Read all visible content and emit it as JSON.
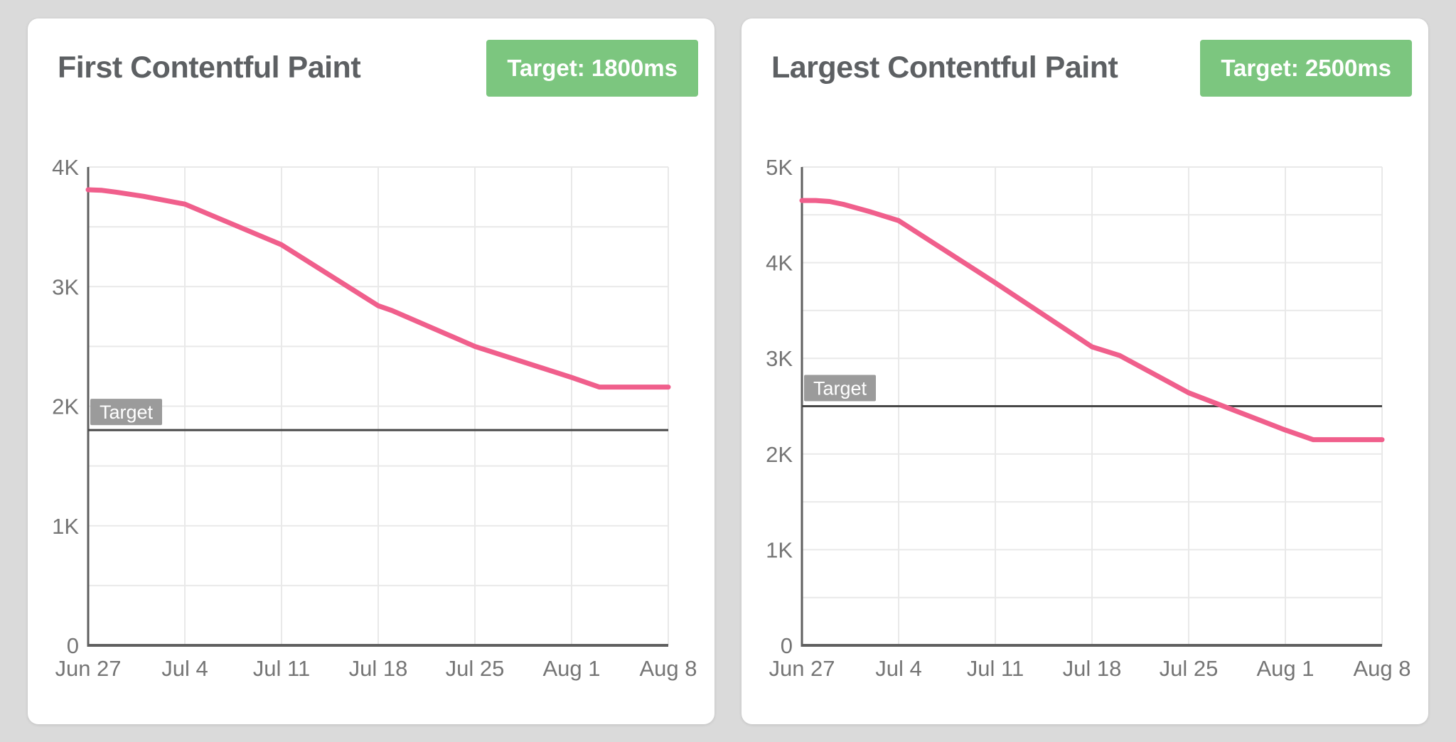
{
  "page": {
    "background": "#dadada"
  },
  "colors": {
    "card_bg": "#ffffff",
    "title_text": "#5d6063",
    "badge_bg": "#7cc67f",
    "badge_text": "#ffffff",
    "tick_text": "#757575",
    "grid_line": "#e9e9e9",
    "axis_line": "#5f5f5f",
    "target_line": "#474747",
    "target_label_bg": "#9b9b9b",
    "target_label_text": "#ffffff",
    "series_line": "#f05f8c"
  },
  "cards": [
    {
      "title": "First Contentful Paint",
      "badge": "Target: 1800ms"
    },
    {
      "title": "Largest Contentful Paint",
      "badge": "Target: 2500ms"
    }
  ],
  "chart_data": [
    {
      "type": "line",
      "title": "First Contentful Paint",
      "unit": "ms",
      "grid": true,
      "legend_position": "none",
      "ylim": [
        0,
        4000
      ],
      "grid_step_y": 500,
      "x_span_days": 42,
      "y_ticks": [
        {
          "value": 0,
          "label": "0"
        },
        {
          "value": 1000,
          "label": "1K"
        },
        {
          "value": 2000,
          "label": "2K"
        },
        {
          "value": 3000,
          "label": "3K"
        },
        {
          "value": 4000,
          "label": "4K"
        }
      ],
      "x_ticks": [
        {
          "day": 0,
          "label": "Jun 27"
        },
        {
          "day": 7,
          "label": "Jul 4"
        },
        {
          "day": 14,
          "label": "Jul 11"
        },
        {
          "day": 21,
          "label": "Jul 18"
        },
        {
          "day": 28,
          "label": "Jul 25"
        },
        {
          "day": 35,
          "label": "Aug 1"
        },
        {
          "day": 42,
          "label": "Aug 8"
        }
      ],
      "target": {
        "value": 1800,
        "label": "Target"
      },
      "series": [
        {
          "days": [
            0,
            1,
            2,
            4,
            7,
            14,
            21,
            22,
            28,
            35,
            37,
            42
          ],
          "values": [
            3810,
            3805,
            3790,
            3755,
            3690,
            3350,
            2840,
            2800,
            2500,
            2240,
            2160,
            2160
          ]
        }
      ]
    },
    {
      "type": "line",
      "title": "Largest Contentful Paint",
      "unit": "ms",
      "grid": true,
      "legend_position": "none",
      "ylim": [
        0,
        5000
      ],
      "grid_step_y": 500,
      "x_span_days": 42,
      "y_ticks": [
        {
          "value": 0,
          "label": "0"
        },
        {
          "value": 1000,
          "label": "1K"
        },
        {
          "value": 2000,
          "label": "2K"
        },
        {
          "value": 3000,
          "label": "3K"
        },
        {
          "value": 4000,
          "label": "4K"
        },
        {
          "value": 5000,
          "label": "5K"
        }
      ],
      "x_ticks": [
        {
          "day": 0,
          "label": "Jun 27"
        },
        {
          "day": 7,
          "label": "Jul 4"
        },
        {
          "day": 14,
          "label": "Jul 11"
        },
        {
          "day": 21,
          "label": "Jul 18"
        },
        {
          "day": 28,
          "label": "Jul 25"
        },
        {
          "day": 35,
          "label": "Aug 1"
        },
        {
          "day": 42,
          "label": "Aug 8"
        }
      ],
      "target": {
        "value": 2500,
        "label": "Target"
      },
      "series": [
        {
          "days": [
            0,
            1,
            2,
            3,
            5,
            7,
            14,
            21,
            23,
            28,
            35,
            37,
            42
          ],
          "values": [
            4650,
            4650,
            4640,
            4610,
            4530,
            4440,
            3790,
            3120,
            3030,
            2640,
            2250,
            2150,
            2150
          ]
        }
      ]
    }
  ]
}
